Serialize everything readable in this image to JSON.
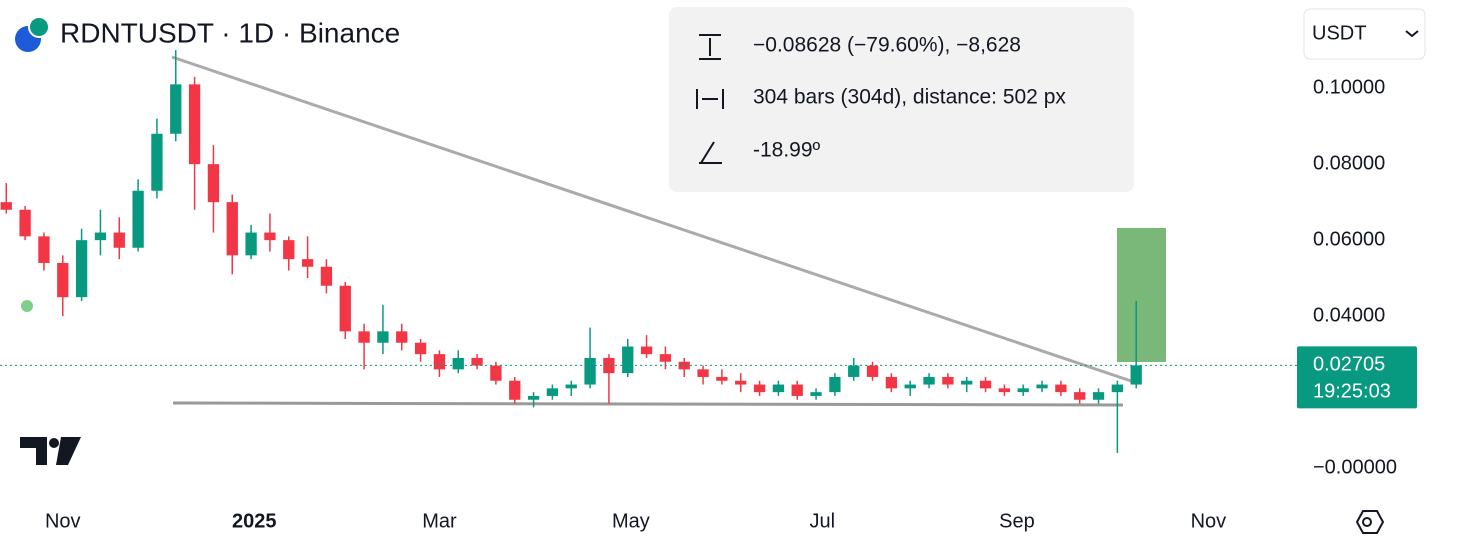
{
  "header": {
    "title": "RDNTUSDT · 1D · Binance",
    "currency": "USDT"
  },
  "measure": {
    "change": "−0.08628 (−79.60%), −8,628",
    "range": "304 bars (304d), distance: 502 px",
    "angle": "-18.99º"
  },
  "chart_data": {
    "type": "candlestick",
    "x": [
      -18,
      -12,
      -6,
      0,
      6,
      12,
      18,
      24,
      30,
      36,
      42,
      48,
      54,
      60,
      66,
      72,
      78,
      84,
      90,
      96,
      102,
      108,
      114,
      120,
      126,
      132,
      138,
      144,
      150,
      156,
      162,
      168,
      174,
      180,
      186,
      192,
      198,
      204,
      210,
      216,
      222,
      228,
      234,
      240,
      246,
      252,
      258,
      264,
      270,
      276,
      282,
      288,
      294,
      300,
      306,
      312,
      318,
      324,
      330,
      336,
      342
    ],
    "open": [
      0.07,
      0.068,
      0.061,
      0.054,
      0.045,
      0.06,
      0.062,
      0.058,
      0.073,
      0.088,
      0.101,
      0.08,
      0.07,
      0.056,
      0.062,
      0.06,
      0.055,
      0.053,
      0.048,
      0.036,
      0.033,
      0.036,
      0.033,
      0.03,
      0.026,
      0.029,
      0.027,
      0.023,
      0.018,
      0.019,
      0.021,
      0.022,
      0.029,
      0.025,
      0.032,
      0.03,
      0.028,
      0.026,
      0.024,
      0.023,
      0.022,
      0.02,
      0.022,
      0.019,
      0.02,
      0.024,
      0.027,
      0.024,
      0.021,
      0.022,
      0.024,
      0.022,
      0.023,
      0.021,
      0.02,
      0.021,
      0.022,
      0.02,
      0.018,
      0.02,
      0.022
    ],
    "high": [
      0.075,
      0.069,
      0.062,
      0.056,
      0.063,
      0.068,
      0.066,
      0.076,
      0.092,
      0.11,
      0.103,
      0.085,
      0.072,
      0.064,
      0.067,
      0.061,
      0.061,
      0.055,
      0.049,
      0.038,
      0.043,
      0.038,
      0.034,
      0.031,
      0.031,
      0.03,
      0.028,
      0.024,
      0.02,
      0.022,
      0.023,
      0.037,
      0.03,
      0.034,
      0.035,
      0.032,
      0.029,
      0.027,
      0.026,
      0.025,
      0.023,
      0.023,
      0.023,
      0.021,
      0.025,
      0.029,
      0.028,
      0.025,
      0.023,
      0.025,
      0.025,
      0.024,
      0.024,
      0.022,
      0.022,
      0.023,
      0.023,
      0.021,
      0.021,
      0.023,
      0.044
    ],
    "low": [
      0.067,
      0.06,
      0.052,
      0.04,
      0.044,
      0.056,
      0.055,
      0.057,
      0.071,
      0.086,
      0.068,
      0.062,
      0.051,
      0.055,
      0.057,
      0.052,
      0.05,
      0.046,
      0.034,
      0.026,
      0.03,
      0.031,
      0.028,
      0.024,
      0.025,
      0.026,
      0.022,
      0.017,
      0.016,
      0.018,
      0.019,
      0.021,
      0.017,
      0.024,
      0.029,
      0.026,
      0.024,
      0.022,
      0.022,
      0.02,
      0.019,
      0.019,
      0.018,
      0.018,
      0.019,
      0.023,
      0.023,
      0.02,
      0.019,
      0.021,
      0.021,
      0.02,
      0.02,
      0.019,
      0.019,
      0.02,
      0.019,
      0.017,
      0.017,
      0.004,
      0.021
    ],
    "close": [
      0.068,
      0.061,
      0.054,
      0.045,
      0.06,
      0.062,
      0.058,
      0.073,
      0.088,
      0.101,
      0.08,
      0.07,
      0.056,
      0.062,
      0.06,
      0.055,
      0.053,
      0.048,
      0.036,
      0.033,
      0.036,
      0.033,
      0.03,
      0.026,
      0.029,
      0.027,
      0.023,
      0.018,
      0.019,
      0.021,
      0.022,
      0.029,
      0.025,
      0.032,
      0.03,
      0.028,
      0.026,
      0.024,
      0.023,
      0.022,
      0.02,
      0.022,
      0.019,
      0.02,
      0.024,
      0.027,
      0.024,
      0.021,
      0.022,
      0.024,
      0.022,
      0.023,
      0.021,
      0.02,
      0.021,
      0.022,
      0.02,
      0.018,
      0.02,
      0.022,
      0.02705
    ],
    "up_color": "#089981",
    "down_color": "#f23645",
    "xlim": [
      -20,
      391
    ],
    "xticks": [
      {
        "value": 0,
        "label": "Nov"
      },
      {
        "value": 61,
        "label": "2025"
      },
      {
        "value": 120,
        "label": "Mar"
      },
      {
        "value": 181,
        "label": "May"
      },
      {
        "value": 242,
        "label": "Jul"
      },
      {
        "value": 304,
        "label": "Sep"
      },
      {
        "value": 365,
        "label": "Nov"
      }
    ],
    "ylim": [
      -0.0097,
      0.1232
    ],
    "yticks": [
      {
        "value": 0.1,
        "label": "0.10000"
      },
      {
        "value": 0.08,
        "label": "0.08000"
      },
      {
        "value": 0.06,
        "label": "0.06000"
      },
      {
        "value": 0.04,
        "label": "0.04000"
      },
      {
        "value": 0,
        "label": "−0.00000"
      }
    ],
    "countdown": "19:25:03"
  }
}
